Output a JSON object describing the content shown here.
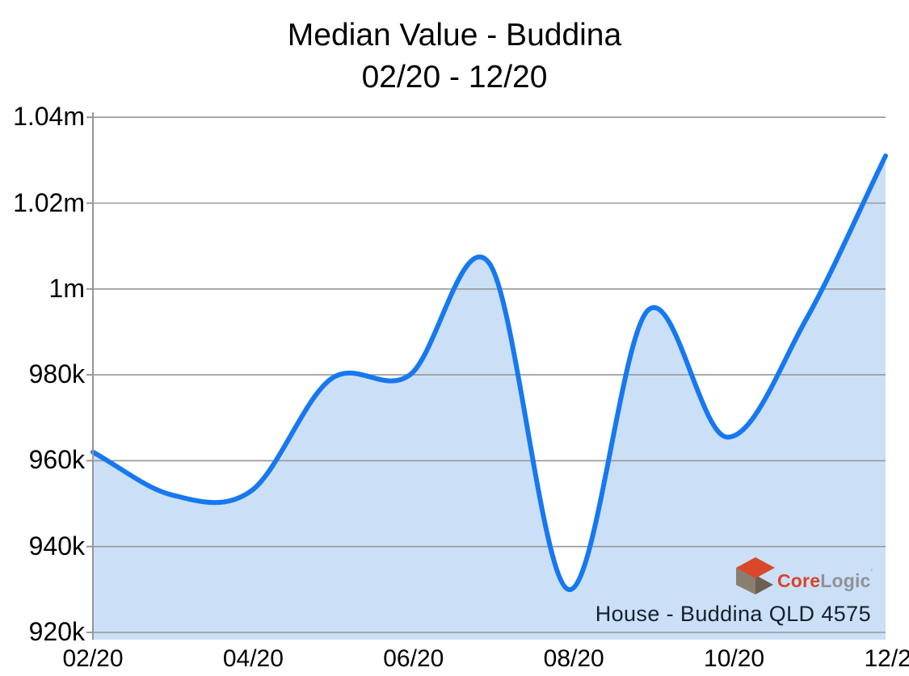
{
  "title": {
    "line1": "Median Value - Buddina",
    "line2": "02/20 - 12/20"
  },
  "chart_data": {
    "type": "area",
    "title": "Median Value - Buddina 02/20 - 12/20",
    "categories": [
      "02/20",
      "03/20",
      "04/20",
      "05/20",
      "06/20",
      "07/20",
      "08/20",
      "09/20",
      "10/20",
      "11/20",
      "12/20"
    ],
    "values": [
      962000,
      952000,
      953000,
      979000,
      980000,
      1006000,
      930000,
      995000,
      965500,
      993000,
      1031000
    ],
    "series_name": "Median value",
    "x_tick_labels": [
      "02/20",
      "04/20",
      "06/20",
      "08/20",
      "10/20",
      "12/20"
    ],
    "y_ticks": [
      {
        "label": "1.04m",
        "value": 1040000
      },
      {
        "label": "1.02m",
        "value": 1020000
      },
      {
        "label": "1m",
        "value": 1000000
      },
      {
        "label": "980k",
        "value": 980000
      },
      {
        "label": "960k",
        "value": 960000
      },
      {
        "label": "940k",
        "value": 940000
      },
      {
        "label": "920k",
        "value": 920000
      }
    ],
    "ylim": [
      918300,
      1041200
    ],
    "grid": true,
    "legend": "none",
    "smoothing": "spline",
    "line_color": "#1778F0",
    "fill_color": "#CBE0F7",
    "grid_color": "#969696",
    "axis_color": "#969696",
    "label_color": "#000000"
  },
  "watermark": {
    "brand_first": "Core",
    "brand_second": "Logic",
    "trademark": "’",
    "brand_first_color": "#D8432C",
    "brand_second_color": "#8F9194",
    "trademark_color": "#9B9DA0",
    "logo_colors": {
      "top": "#D8492B",
      "left": "#8A7E71",
      "bottom": "#6C6052"
    },
    "caption": "House - Buddina QLD 4575",
    "caption_color": "#16202E"
  }
}
